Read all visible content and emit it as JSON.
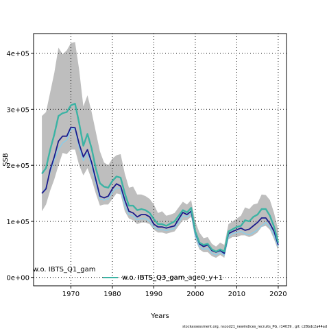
{
  "chart_data": {
    "type": "line",
    "xlabel": "Years",
    "ylabel": "SSB",
    "xlim": [
      1961,
      2022
    ],
    "ylim": [
      -15000,
      435000
    ],
    "x_ticks": [
      1970,
      1980,
      1990,
      2000,
      2010,
      2020
    ],
    "y_ticks": [
      {
        "value": 0,
        "label": "0e+00"
      },
      {
        "value": 100000,
        "label": "1e+05"
      },
      {
        "value": 200000,
        "label": "2e+05"
      },
      {
        "value": 300000,
        "label": "3e+05"
      },
      {
        "value": 400000,
        "label": "4e+05"
      }
    ],
    "grid": true,
    "legend_position": "bottom-center",
    "colors": {
      "band": "#bebebe",
      "ibts_q1": "#87ceeb",
      "ibts_q3": "#1a1a8c",
      "ibts_q3_age0": "#3cb3a4"
    },
    "years": [
      1963,
      1964,
      1965,
      1966,
      1967,
      1968,
      1969,
      1970,
      1971,
      1972,
      1973,
      1974,
      1975,
      1976,
      1977,
      1978,
      1979,
      1980,
      1981,
      1982,
      1983,
      1984,
      1985,
      1986,
      1987,
      1988,
      1989,
      1990,
      1991,
      1992,
      1993,
      1994,
      1995,
      1996,
      1997,
      1998,
      1999,
      2000,
      2001,
      2002,
      2003,
      2004,
      2005,
      2006,
      2007,
      2008,
      2009,
      2010,
      2011,
      2012,
      2013,
      2014,
      2015,
      2016,
      2017,
      2018,
      2019,
      2020
    ],
    "band": {
      "upper": [
        288000,
        295000,
        330000,
        365000,
        410000,
        398000,
        405000,
        418000,
        420000,
        370000,
        305000,
        325000,
        295000,
        260000,
        225000,
        205000,
        200000,
        212000,
        218000,
        220000,
        185000,
        160000,
        162000,
        148000,
        148000,
        145000,
        140000,
        130000,
        115000,
        118000,
        110000,
        112000,
        115000,
        125000,
        135000,
        130000,
        138000,
        100000,
        80000,
        70000,
        72000,
        60000,
        55000,
        62000,
        58000,
        95000,
        100000,
        105000,
        110000,
        125000,
        122000,
        130000,
        132000,
        148000,
        147000,
        138000,
        115000,
        85000
      ],
      "lower": [
        118000,
        130000,
        155000,
        175000,
        200000,
        222000,
        220000,
        228000,
        228000,
        200000,
        182000,
        195000,
        175000,
        150000,
        128000,
        130000,
        130000,
        140000,
        150000,
        148000,
        118000,
        105000,
        102000,
        95000,
        98000,
        98000,
        95000,
        85000,
        80000,
        80000,
        78000,
        80000,
        82000,
        92000,
        102000,
        102000,
        108000,
        68000,
        50000,
        45000,
        45000,
        38000,
        35000,
        40000,
        35000,
        68000,
        72000,
        72000,
        75000,
        75000,
        72000,
        75000,
        80000,
        90000,
        92000,
        85000,
        68000,
        48000
      ]
    },
    "series": [
      {
        "name": "w.o. IBTS_Q1_gam",
        "values": [
          150000,
          160000,
          188000,
          210000,
          228000,
          240000,
          245000,
          265000,
          265000,
          232000,
          208000,
          222000,
          200000,
          170000,
          140000,
          138000,
          140000,
          152000,
          160000,
          158000,
          128000,
          112000,
          110000,
          103000,
          105000,
          105000,
          100000,
          90000,
          85000,
          85000,
          84000,
          85000,
          88000,
          98000,
          110000,
          108000,
          115000,
          75000,
          55000,
          50000,
          52000,
          43000,
          40000,
          45000,
          40000,
          73000,
          78000,
          80000,
          82000,
          78000,
          76000,
          80000,
          85000,
          92000,
          98000,
          90000,
          75000,
          55000
        ]
      },
      {
        "name": "w.o. IBTS_Q3_gam",
        "values": [
          150000,
          158000,
          192000,
          215000,
          243000,
          252000,
          252000,
          268000,
          267000,
          238000,
          215000,
          228000,
          205000,
          175000,
          145000,
          142000,
          145000,
          158000,
          167000,
          163000,
          138000,
          118000,
          115000,
          108000,
          112000,
          112000,
          108000,
          95000,
          90000,
          90000,
          88000,
          90000,
          92000,
          104000,
          116000,
          112000,
          118000,
          80000,
          60000,
          55000,
          58000,
          48000,
          45000,
          48000,
          43000,
          78000,
          82000,
          85000,
          88000,
          84000,
          86000,
          92000,
          98000,
          106000,
          106000,
          96000,
          82000,
          58000
        ]
      },
      {
        "name": "w.o. IBTS_Q3_gam_age0_y+1",
        "values": [
          185000,
          195000,
          228000,
          255000,
          288000,
          293000,
          295000,
          307000,
          310000,
          275000,
          235000,
          256000,
          230000,
          195000,
          168000,
          162000,
          160000,
          172000,
          180000,
          178000,
          150000,
          128000,
          128000,
          120000,
          122000,
          120000,
          115000,
          104000,
          95000,
          95000,
          92000,
          96000,
          100000,
          110000,
          120000,
          116000,
          124000,
          82000,
          62000,
          58000,
          60000,
          50000,
          46000,
          50000,
          46000,
          82000,
          86000,
          90000,
          92000,
          102000,
          100000,
          108000,
          112000,
          122000,
          122000,
          110000,
          90000,
          62000
        ]
      }
    ],
    "legend": [
      {
        "label": "w.o. IBTS_Q1_gam",
        "series": "ibts_q1"
      },
      {
        "label": "w.o. IBTS_Q3_gam",
        "series": "ibts_q3"
      },
      {
        "label": "w.o. IBTS_Q3_gam_age0_y+1",
        "series": "ibts_q3_age0"
      }
    ]
  },
  "footnote": "stockassessment.org,  nscod21_newindices_recruits_PG,  r14039 ,  git: c28bdc2a44ad"
}
